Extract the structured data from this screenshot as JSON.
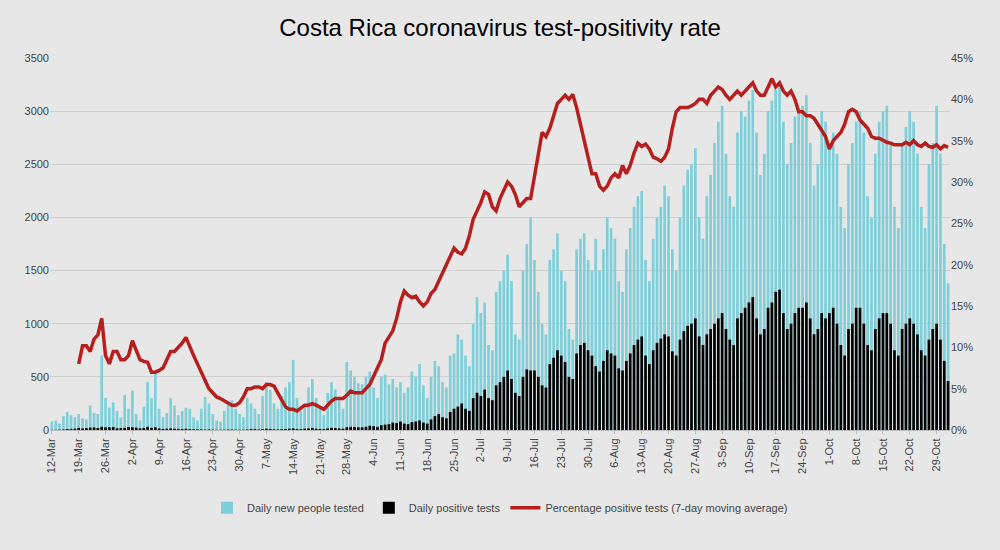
{
  "chart_data": {
    "type": "bar",
    "title": "Costa Rica coronavirus test-positivity rate",
    "stacked": false,
    "grid": true,
    "legend": "bottom",
    "categories": [
      "12-Mar",
      null,
      null,
      null,
      null,
      null,
      null,
      "19-Mar",
      null,
      null,
      null,
      null,
      null,
      null,
      "26-Mar",
      null,
      null,
      null,
      null,
      null,
      null,
      "2-Apr",
      null,
      null,
      null,
      null,
      null,
      null,
      "9-Apr",
      null,
      null,
      null,
      null,
      null,
      null,
      "16-Apr",
      null,
      null,
      null,
      null,
      null,
      null,
      "23-Apr",
      null,
      null,
      null,
      null,
      null,
      null,
      "30-Apr",
      null,
      null,
      null,
      null,
      null,
      null,
      "7-May",
      null,
      null,
      null,
      null,
      null,
      null,
      "14-May",
      null,
      null,
      null,
      null,
      null,
      null,
      "21-May",
      null,
      null,
      null,
      null,
      null,
      null,
      "28-May",
      null,
      null,
      null,
      null,
      null,
      null,
      "4-Jun",
      null,
      null,
      null,
      null,
      null,
      null,
      "11-Jun",
      null,
      null,
      null,
      null,
      null,
      null,
      "18-Jun",
      null,
      null,
      null,
      null,
      null,
      null,
      "25-Jun",
      null,
      null,
      null,
      null,
      null,
      null,
      "2-Jul",
      null,
      null,
      null,
      null,
      null,
      null,
      "9-Jul",
      null,
      null,
      null,
      null,
      null,
      null,
      "16-Jul",
      null,
      null,
      null,
      null,
      null,
      null,
      "23-Jul",
      null,
      null,
      null,
      null,
      null,
      null,
      "30-Jul",
      null,
      null,
      null,
      null,
      null,
      null,
      "6-Aug",
      null,
      null,
      null,
      null,
      null,
      null,
      "13-Aug",
      null,
      null,
      null,
      null,
      null,
      null,
      "20-Aug",
      null,
      null,
      null,
      null,
      null,
      null,
      "27-Aug",
      null,
      null,
      null,
      null,
      null,
      null,
      "3-Sep",
      null,
      null,
      null,
      null,
      null,
      null,
      "10-Sep",
      null,
      null,
      null,
      null,
      null,
      null,
      "17-Sep",
      null,
      null,
      null,
      null,
      null,
      null,
      "24-Sep",
      null,
      null,
      null,
      null,
      null,
      null,
      "1-Oct",
      null,
      null,
      null,
      null,
      null,
      null,
      "8-Oct",
      null,
      null,
      null,
      null,
      null,
      null,
      "15-Oct",
      null,
      null,
      null,
      null,
      null,
      null,
      "22-Oct",
      null,
      null,
      null,
      null,
      null,
      null,
      "29-Oct",
      null,
      null,
      null
    ],
    "ylim": [
      0,
      3500
    ],
    "yticks": [
      0,
      500,
      1000,
      1500,
      2000,
      2500,
      3000,
      3500
    ],
    "y2lim": [
      0,
      45
    ],
    "y2ticks": [
      {
        "value": 0,
        "label": "0%"
      },
      {
        "value": 5,
        "label": "5%"
      },
      {
        "value": 10,
        "label": "10%"
      },
      {
        "value": 15,
        "label": "15%"
      },
      {
        "value": 20,
        "label": "20%"
      },
      {
        "value": 25,
        "label": "25%"
      },
      {
        "value": 30,
        "label": "30%"
      },
      {
        "value": 35,
        "label": "35%"
      },
      {
        "value": 40,
        "label": "40%"
      },
      {
        "value": 45,
        "label": "45%"
      }
    ],
    "series": [
      {
        "name": "Daily new people tested",
        "type": "bar",
        "color": "#7ecfd9",
        "values": [
          80,
          90,
          60,
          130,
          170,
          140,
          120,
          150,
          110,
          100,
          230,
          160,
          150,
          700,
          300,
          210,
          260,
          180,
          120,
          330,
          200,
          370,
          150,
          90,
          220,
          450,
          300,
          540,
          200,
          120,
          160,
          300,
          230,
          140,
          180,
          210,
          200,
          120,
          90,
          200,
          310,
          250,
          150,
          90,
          80,
          180,
          250,
          280,
          200,
          150,
          120,
          300,
          250,
          200,
          150,
          320,
          450,
          380,
          250,
          200,
          320,
          400,
          450,
          660,
          300,
          180,
          220,
          400,
          480,
          300,
          200,
          140,
          350,
          450,
          380,
          280,
          200,
          640,
          560,
          500,
          440,
          430,
          500,
          550,
          400,
          300,
          500,
          520,
          430,
          480,
          400,
          450,
          350,
          400,
          550,
          500,
          620,
          420,
          300,
          500,
          650,
          600,
          450,
          400,
          700,
          720,
          900,
          850,
          700,
          600,
          1000,
          1250,
          1100,
          1200,
          800,
          750,
          1300,
          1400,
          1500,
          1650,
          1400,
          900,
          850,
          1500,
          1750,
          2000,
          1600,
          1300,
          1000,
          900,
          1600,
          1700,
          1850,
          1500,
          1400,
          950,
          850,
          1700,
          1800,
          1850,
          1600,
          1500,
          1800,
          1500,
          1700,
          2000,
          1900,
          1800,
          1400,
          1300,
          1700,
          1900,
          2100,
          2200,
          2250,
          1600,
          1400,
          1800,
          2000,
          2100,
          2300,
          2200,
          1700,
          1500,
          2000,
          2300,
          2450,
          2500,
          2650,
          2000,
          1800,
          2200,
          2400,
          2700,
          2900,
          3050,
          2600,
          2200,
          2100,
          2800,
          3000,
          2950,
          3100,
          3200,
          2800,
          2400,
          2600,
          3000,
          3100,
          3200,
          3250,
          2900,
          2500,
          2700,
          2950,
          3000,
          3050,
          3150,
          2700,
          2300,
          2500,
          3000,
          2900,
          2700,
          2800,
          2600,
          2100,
          1900,
          2500,
          2700,
          2900,
          3000,
          2800,
          2200,
          2000,
          2600,
          2900,
          3000,
          3050,
          2700,
          2100,
          1900,
          2700,
          2850,
          3000,
          2900,
          2600,
          2100,
          1900,
          2500,
          2700,
          3050,
          2600,
          1750,
          1380
        ]
      },
      {
        "name": "Daily positive tests",
        "type": "bar",
        "color": "#000000",
        "values": [
          1,
          2,
          3,
          5,
          9,
          10,
          12,
          20,
          15,
          17,
          22,
          24,
          19,
          30,
          25,
          25,
          28,
          16,
          17,
          20,
          28,
          25,
          22,
          15,
          20,
          30,
          20,
          25,
          15,
          10,
          12,
          15,
          12,
          10,
          8,
          12,
          8,
          6,
          5,
          5,
          4,
          5,
          3,
          2,
          2,
          3,
          4,
          4,
          3,
          3,
          3,
          5,
          8,
          10,
          4,
          8,
          12,
          10,
          6,
          5,
          8,
          10,
          12,
          15,
          10,
          8,
          12,
          15,
          18,
          12,
          10,
          8,
          15,
          20,
          18,
          15,
          12,
          25,
          30,
          28,
          25,
          25,
          30,
          40,
          35,
          30,
          45,
          50,
          55,
          70,
          65,
          80,
          60,
          55,
          75,
          80,
          90,
          70,
          60,
          100,
          130,
          150,
          120,
          110,
          170,
          200,
          220,
          250,
          200,
          180,
          300,
          350,
          320,
          380,
          300,
          280,
          420,
          450,
          500,
          560,
          480,
          350,
          320,
          500,
          570,
          560,
          560,
          500,
          420,
          400,
          620,
          680,
          750,
          700,
          640,
          500,
          480,
          720,
          800,
          820,
          750,
          700,
          600,
          550,
          650,
          750,
          720,
          700,
          580,
          560,
          650,
          720,
          800,
          850,
          880,
          700,
          620,
          750,
          820,
          860,
          900,
          880,
          740,
          700,
          850,
          930,
          980,
          1000,
          1050,
          880,
          800,
          900,
          950,
          1000,
          1050,
          1100,
          950,
          850,
          800,
          1050,
          1100,
          1150,
          1200,
          1250,
          1050,
          900,
          950,
          1150,
          1200,
          1300,
          1320,
          1100,
          950,
          1000,
          1100,
          1150,
          1150,
          1200,
          1050,
          900,
          950,
          1100,
          1050,
          1100,
          1150,
          1000,
          800,
          700,
          950,
          1000,
          1150,
          1150,
          1000,
          800,
          750,
          950,
          1050,
          1100,
          1100,
          1000,
          750,
          700,
          950,
          1000,
          1050,
          1000,
          900,
          750,
          700,
          850,
          950,
          1000,
          850,
          650,
          460
        ]
      },
      {
        "name": "Percentage positive tests (7-day moving average)",
        "type": "line",
        "axis": "y2",
        "color": "#b5201e",
        "line_style": "solid",
        "values": [
          null,
          null,
          null,
          null,
          null,
          null,
          null,
          8,
          10.2,
          10.2,
          9.5,
          11,
          11.5,
          13.5,
          9,
          8,
          9.5,
          9.5,
          8.5,
          8.5,
          9,
          10.8,
          9.5,
          8.5,
          8.3,
          8.2,
          7,
          7,
          7.2,
          7.5,
          8.5,
          9.5,
          9.5,
          10,
          10.5,
          11.2,
          10,
          9,
          8,
          7,
          6,
          5,
          4.5,
          4,
          3.8,
          3.5,
          3.2,
          3,
          3,
          3.3,
          4,
          5,
          5,
          5.2,
          5.2,
          5,
          5.5,
          5.5,
          5.3,
          4.5,
          3.5,
          2.8,
          2.5,
          2.5,
          2.3,
          2.6,
          3,
          3,
          3.2,
          3,
          2.8,
          2.5,
          3,
          3.5,
          3.8,
          3.8,
          3.8,
          4.2,
          4.7,
          4.5,
          4.5,
          4.5,
          5,
          5.5,
          6.5,
          7.5,
          8.5,
          10.5,
          11.2,
          12,
          13.5,
          15.5,
          16.8,
          16.3,
          16,
          16.2,
          15.5,
          15,
          15.5,
          16.5,
          17,
          18,
          19,
          20,
          21.2,
          22,
          21.5,
          21.3,
          22,
          23.5,
          25.5,
          26.5,
          27.5,
          28.8,
          28.5,
          27,
          26.5,
          28,
          29,
          30,
          29.5,
          28.5,
          27,
          27.5,
          28,
          28,
          30.5,
          33,
          36,
          35.5,
          36.5,
          38,
          39.5,
          40,
          40.5,
          40,
          40.6,
          39,
          37,
          35,
          33,
          31,
          31,
          29.5,
          29,
          29.5,
          30.5,
          31,
          30.5,
          32,
          31,
          32,
          33.5,
          34.7,
          34.3,
          34.6,
          34,
          33,
          32.8,
          32.5,
          33,
          34,
          36.5,
          38.5,
          39,
          39,
          39,
          39.2,
          39.5,
          40,
          40,
          39.5,
          40.5,
          41,
          41.5,
          41.2,
          40.5,
          40,
          40.5,
          41,
          40.5,
          41,
          41.5,
          42,
          41,
          40.5,
          40.5,
          41.5,
          42.5,
          41.5,
          42,
          41,
          40.5,
          41,
          40,
          38.5,
          38.5,
          38,
          38,
          37.7,
          37,
          36.2,
          35.5,
          34,
          35,
          35.5,
          36,
          37,
          38.5,
          38.8,
          38.5,
          37.5,
          37,
          36.5,
          35.5,
          35.3,
          35.3,
          35,
          34.8,
          34.7,
          34.5,
          34.5,
          34.5,
          34.8,
          34.5,
          35,
          34.5,
          34.3,
          34.7,
          34.3,
          34.2,
          34.5,
          34,
          34.4,
          34.2
        ]
      }
    ]
  }
}
